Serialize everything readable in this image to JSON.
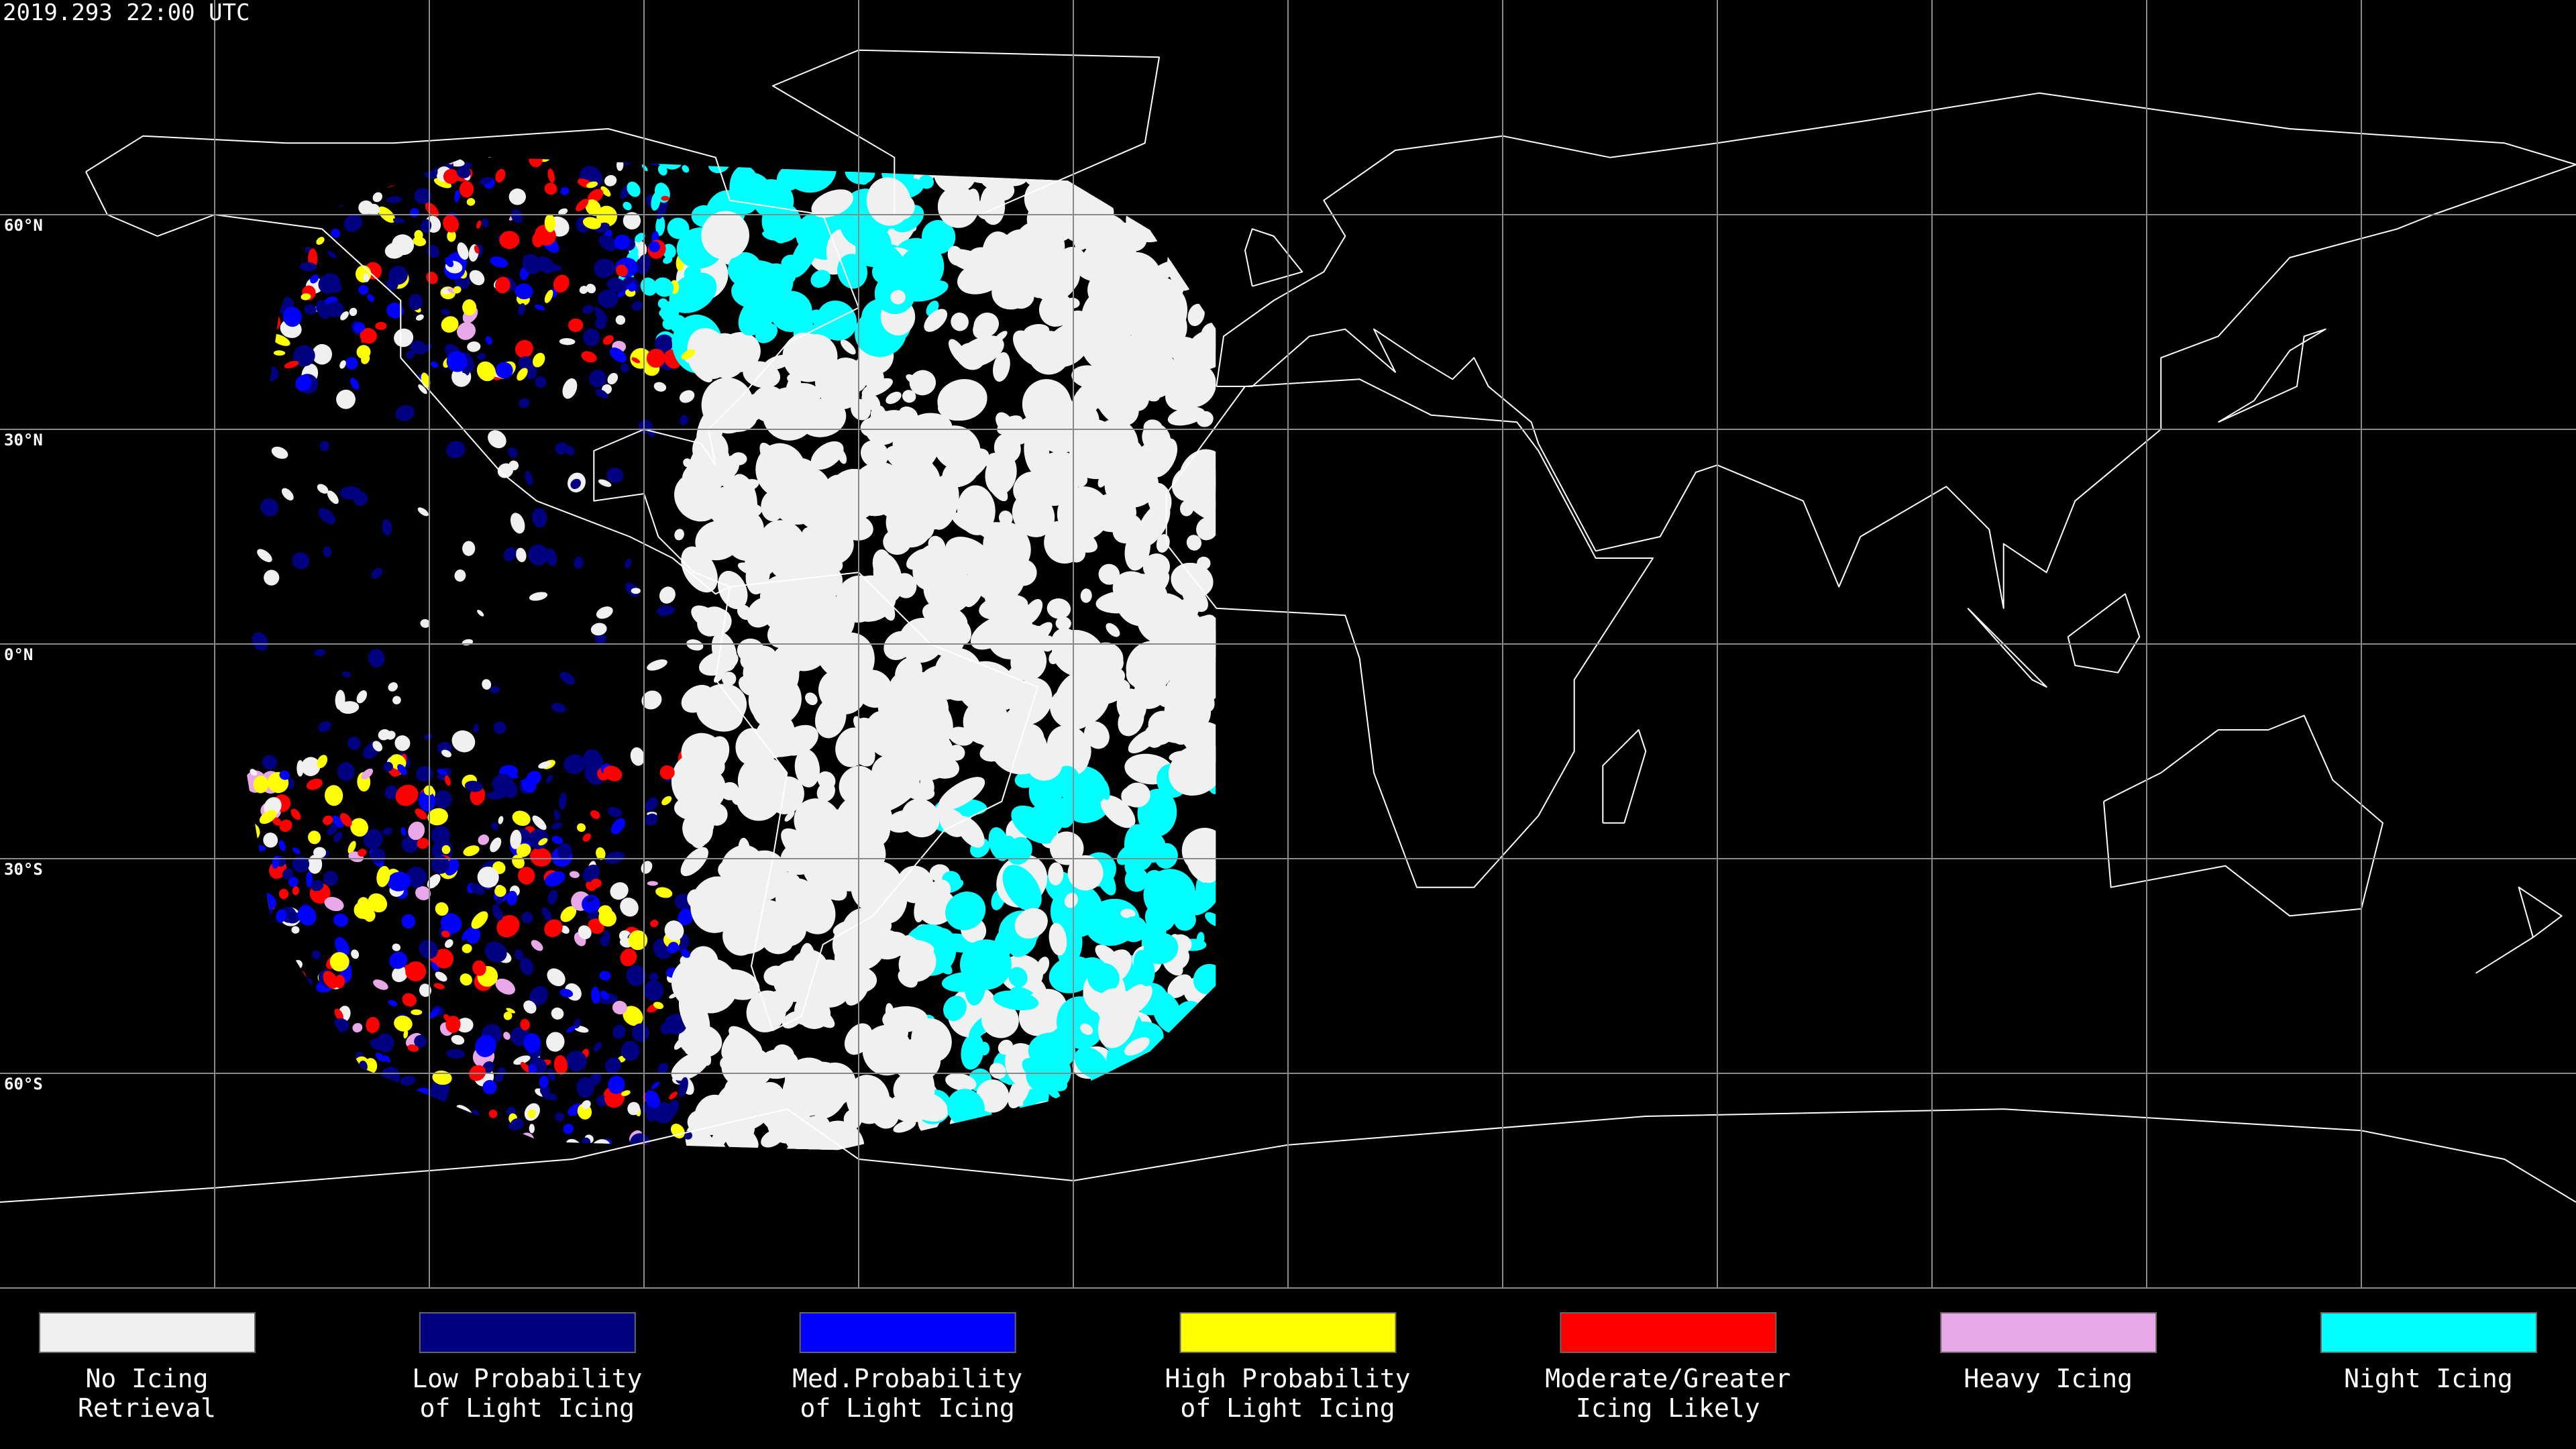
{
  "timestamp": "2019.293 22:00 UTC",
  "latitude_labels": [
    "60°N",
    "30°N",
    "0°N",
    "30°S",
    "60°S"
  ],
  "legend": [
    {
      "label_lines": [
        "No Icing",
        "Retrieval"
      ],
      "color": "#f0f0f0"
    },
    {
      "label_lines": [
        "Low Probability",
        "of Light Icing"
      ],
      "color": "#000080"
    },
    {
      "label_lines": [
        "Med.Probability",
        "of Light Icing"
      ],
      "color": "#0000ff"
    },
    {
      "label_lines": [
        "High Probability",
        "of Light Icing"
      ],
      "color": "#ffff00"
    },
    {
      "label_lines": [
        "Moderate/Greater",
        "Icing Likely"
      ],
      "color": "#ff0000"
    },
    {
      "label_lines": [
        "Heavy Icing"
      ],
      "color": "#e8a8e8"
    },
    {
      "label_lines": [
        "Night Icing"
      ],
      "color": "#00ffff"
    }
  ]
}
